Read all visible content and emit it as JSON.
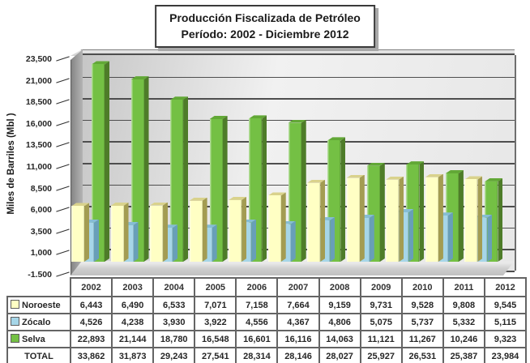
{
  "title": {
    "line1": "Producción Fiscalizada de Petróleo",
    "line2": "Período: 2002  - Diciembre  2012"
  },
  "chart_data": {
    "type": "bar",
    "style": "3d-clustered-column",
    "title": "Producción Fiscalizada de Petróleo Período: 2002 - Diciembre 2012",
    "xlabel": "",
    "ylabel": "Miles de Barriles (Mbl )",
    "ylim": [
      -1500,
      23500
    ],
    "ytick_step": 2500,
    "yticks": [
      23500,
      21000,
      18500,
      16000,
      13500,
      11000,
      8500,
      6000,
      3500,
      1000,
      -1500
    ],
    "grid": true,
    "legend_position": "table-left",
    "categories": [
      "2002",
      "2003",
      "2004",
      "2005",
      "2006",
      "2007",
      "2008",
      "2009",
      "2010",
      "2011",
      "2012"
    ],
    "series": [
      {
        "name": "Noroeste",
        "color": "#FFFFC4",
        "side_color": "#A39C52",
        "top_color": "#D9D28C",
        "values": [
          6443,
          6490,
          6533,
          7071,
          7158,
          7664,
          9159,
          9731,
          9528,
          9808,
          9545
        ]
      },
      {
        "name": "Zócalo",
        "color": "#A6D6E8",
        "side_color": "#689FB8",
        "top_color": "#86BDD4",
        "values": [
          4526,
          4238,
          3930,
          3922,
          4556,
          4367,
          4806,
          5075,
          5737,
          5332,
          5115
        ]
      },
      {
        "name": "Selva",
        "color": "#74C044",
        "side_color": "#4E7C29",
        "top_color": "#62A836",
        "values": [
          22893,
          21144,
          18780,
          16548,
          16601,
          16116,
          14063,
          11121,
          11267,
          10246,
          9323
        ]
      }
    ],
    "totals": {
      "label": "TOTAL",
      "values": [
        33862,
        31873,
        29243,
        27541,
        28314,
        28146,
        28027,
        25927,
        26531,
        25387,
        23984
      ]
    }
  }
}
